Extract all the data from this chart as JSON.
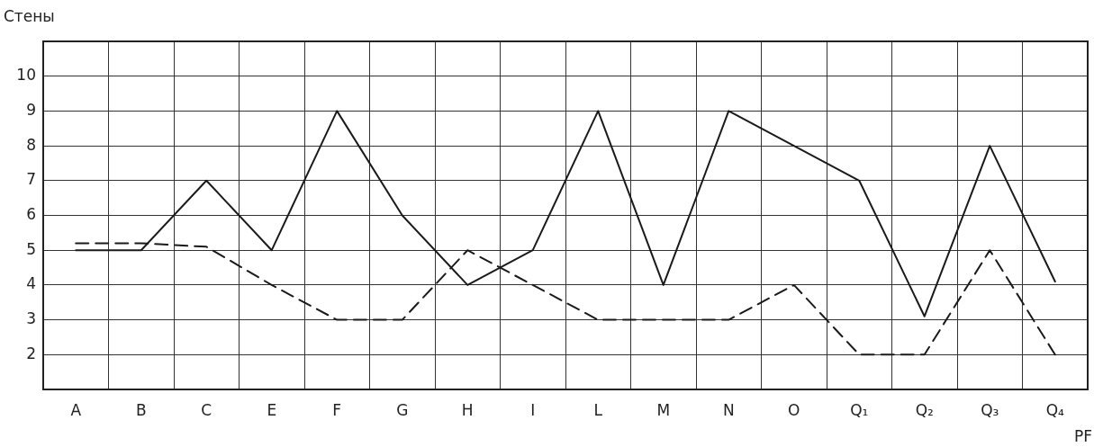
{
  "chart_data": {
    "type": "line",
    "xlabel": "PF",
    "ylabel": "Стены",
    "categories": [
      "A",
      "B",
      "C",
      "E",
      "F",
      "G",
      "H",
      "I",
      "L",
      "M",
      "N",
      "O",
      "Q₁",
      "Q₂",
      "Q₃",
      "Q₄"
    ],
    "series": [
      {
        "color": "#1a1a1a",
        "line_style": "solid",
        "values": [
          5,
          5,
          7,
          5,
          9,
          6,
          4,
          5,
          9,
          4,
          9,
          8,
          7,
          3.1,
          8,
          4.1
        ]
      },
      {
        "color": "#1a1a1a",
        "line_style": "dashed",
        "values": [
          5.2,
          5.2,
          5.1,
          4,
          3,
          3,
          5,
          4,
          3,
          3,
          3,
          4,
          2,
          2,
          5,
          2
        ]
      }
    ],
    "ylim": [
      1,
      11
    ],
    "yticks": [
      2,
      3,
      4,
      5,
      6,
      7,
      8,
      9,
      10
    ],
    "grid": true,
    "legend": false,
    "marker": "none"
  }
}
